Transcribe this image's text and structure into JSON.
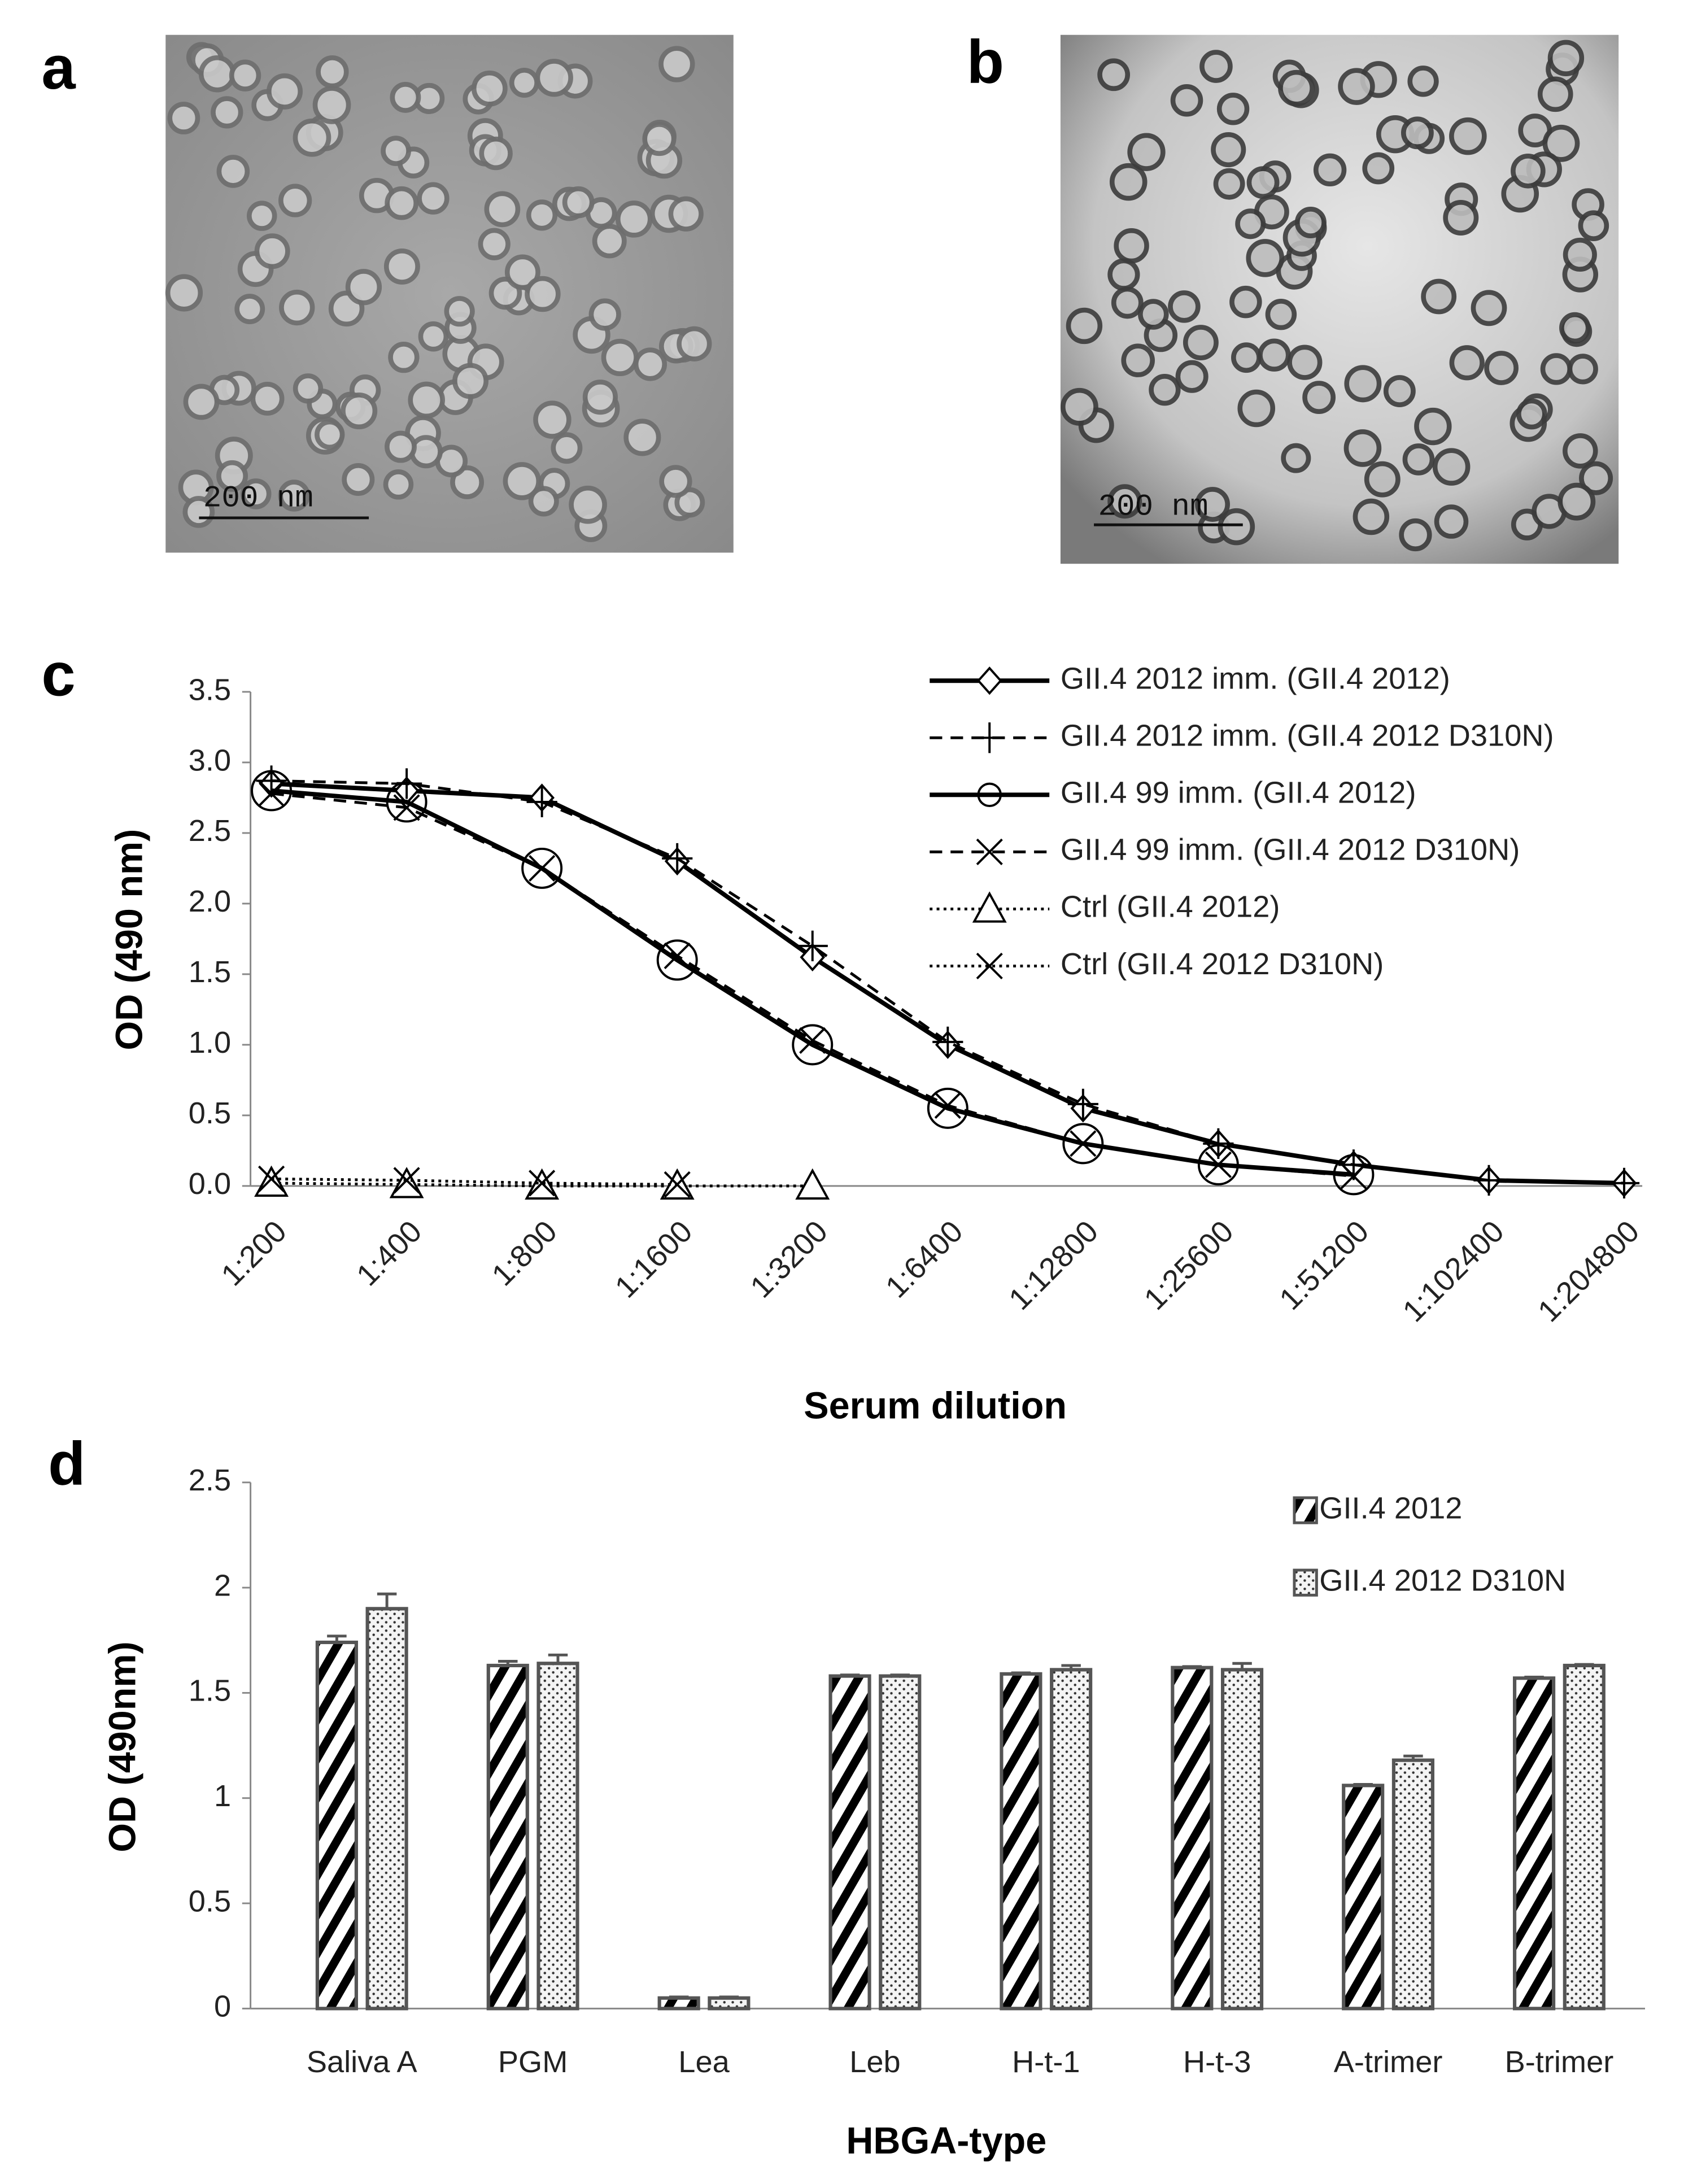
{
  "panel_labels": [
    "a",
    "b",
    "c",
    "d"
  ],
  "scale_bars": [
    "200 nm",
    "200 nm"
  ],
  "chart_data": [
    {
      "type": "line",
      "xlabel": "Serum dilution",
      "ylabel": "OD (490 nm)",
      "categories": [
        "1:200",
        "1:400",
        "1:800",
        "1:1600",
        "1:3200",
        "1:6400",
        "1:12800",
        "1:25600",
        "1:51200",
        "1:102400",
        "1:204800"
      ],
      "ylim": [
        0,
        3.5
      ],
      "yticks": [
        {
          "value": 0,
          "label": "0.0"
        },
        0.5,
        {
          "value": 1,
          "label": "1.0"
        },
        1.5,
        {
          "value": 2,
          "label": "2.0"
        },
        2.5,
        {
          "value": 3,
          "label": "3.0"
        },
        3.5
      ],
      "legend": "upper right",
      "series": [
        {
          "name": "GII.4 2012 imm. (GII.4 2012)",
          "color": "#000000",
          "dash": "solid",
          "marker": "diamond",
          "values": [
            2.85,
            2.8,
            2.75,
            2.3,
            1.62,
            1.0,
            0.55,
            0.3,
            0.15,
            0.04,
            0.02
          ]
        },
        {
          "name": "GII.4 2012 imm. (GII.4 2012 D310N)",
          "color": "#000000",
          "dash": "dashed",
          "marker": "plus",
          "values": [
            2.87,
            2.85,
            2.72,
            2.32,
            1.7,
            1.02,
            0.58,
            0.3,
            0.15,
            0.04,
            0.02
          ]
        },
        {
          "name": "GII.4 99 imm. (GII.4 2012)",
          "color": "#000000",
          "dash": "solid",
          "marker": "circle",
          "values": [
            2.8,
            2.72,
            2.25,
            1.6,
            1.0,
            0.55,
            0.3,
            0.15,
            0.08,
            null,
            null
          ]
        },
        {
          "name": "GII.4 99 imm. (GII.4 2012 D310N)",
          "color": "#000000",
          "dash": "dashed",
          "marker": "x",
          "values": [
            2.78,
            2.68,
            2.25,
            1.63,
            1.03,
            0.57,
            0.3,
            0.15,
            0.07,
            null,
            null
          ]
        },
        {
          "name": "Ctrl (GII.4 2012)",
          "color": "#000000",
          "dash": "dotted",
          "marker": "triangle",
          "values": [
            0.02,
            0.01,
            0.0,
            0.0,
            0.0,
            null,
            null,
            null,
            null,
            null,
            null
          ]
        },
        {
          "name": "Ctrl (GII.4 2012 D310N)",
          "color": "#000000",
          "dash": "dotted",
          "marker": "x",
          "values": [
            0.05,
            0.04,
            0.02,
            0.01,
            null,
            null,
            null,
            null,
            null,
            null,
            null
          ]
        }
      ]
    },
    {
      "type": "bar",
      "xlabel": "HBGA-type",
      "ylabel": "OD (490nm)",
      "categories": [
        "Saliva A",
        "PGM",
        "Lea",
        "Leb",
        "H-t-1",
        "H-t-3",
        "A-trimer",
        "B-trimer"
      ],
      "ylim": [
        0,
        2.5
      ],
      "yticks": [
        0,
        0.5,
        1,
        1.5,
        2,
        2.5
      ],
      "legend": "upper right",
      "series": [
        {
          "name": "GII.4 2012",
          "color": "#000000",
          "pattern": "diagonal",
          "values": [
            1.74,
            1.63,
            0.05,
            1.58,
            1.59,
            1.62,
            1.06,
            1.57
          ],
          "errors": [
            0.03,
            0.02,
            0.005,
            0.005,
            0.005,
            0.005,
            0.005,
            0.005
          ]
        },
        {
          "name": "GII.4 2012 D310N",
          "color": "#000000",
          "pattern": "dots",
          "values": [
            1.9,
            1.64,
            0.05,
            1.58,
            1.61,
            1.61,
            1.18,
            1.63
          ],
          "errors": [
            0.07,
            0.04,
            0.005,
            0.005,
            0.02,
            0.03,
            0.02,
            0.005
          ]
        }
      ]
    }
  ]
}
